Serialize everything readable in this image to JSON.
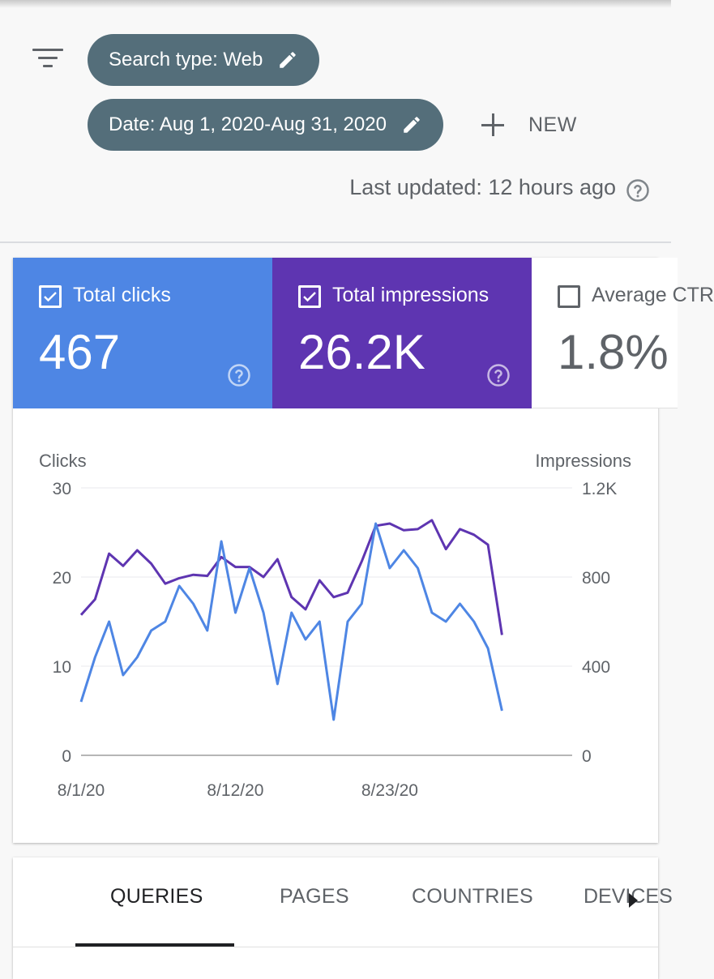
{
  "filters": {
    "search_type_label": "Search type: Web",
    "date_label": "Date: Aug 1, 2020-Aug 31, 2020",
    "new_label": "NEW",
    "last_updated": "Last updated: 12 hours ago"
  },
  "metrics": [
    {
      "label": "Total clicks",
      "value": "467",
      "checked": true,
      "color": "#4e86e4"
    },
    {
      "label": "Total impressions",
      "value": "26.2K",
      "checked": true,
      "color": "#5e35b1"
    },
    {
      "label": "Average CTR",
      "value": "1.8%",
      "checked": false
    }
  ],
  "chart_data": {
    "type": "line",
    "left_axis_label": "Clicks",
    "right_axis_label": "Impressions",
    "left_ticks": [
      "0",
      "10",
      "20",
      "30"
    ],
    "right_ticks": [
      "0",
      "400",
      "800",
      "1.2K"
    ],
    "ylim_left": [
      0,
      30
    ],
    "ylim_right": [
      0,
      1200
    ],
    "x_tick_labels": [
      "8/1/20",
      "8/12/20",
      "8/23/20"
    ],
    "x_tick_days": [
      1,
      12,
      23
    ],
    "x": [
      1,
      2,
      3,
      4,
      5,
      6,
      7,
      8,
      9,
      10,
      11,
      12,
      13,
      14,
      15,
      16,
      17,
      18,
      19,
      20,
      21,
      22,
      23,
      24,
      25,
      26,
      27,
      28,
      29,
      30,
      31
    ],
    "series": [
      {
        "name": "Clicks",
        "axis": "left",
        "color": "#4e86e4",
        "values": [
          6,
          11,
          15,
          9,
          11,
          14,
          15,
          19,
          17,
          14,
          24,
          16,
          21,
          16,
          8,
          16,
          13,
          15,
          4,
          15,
          17,
          26,
          21,
          23,
          21,
          16,
          15,
          17,
          15,
          12,
          5
        ]
      },
      {
        "name": "Impressions",
        "axis": "right",
        "color": "#5e35b1",
        "values": [
          630,
          700,
          905,
          850,
          920,
          860,
          770,
          795,
          810,
          805,
          890,
          845,
          845,
          800,
          880,
          710,
          655,
          785,
          710,
          730,
          870,
          1030,
          1040,
          1010,
          1015,
          1055,
          925,
          1015,
          990,
          945,
          540
        ]
      }
    ]
  },
  "tabs": [
    {
      "label": "QUERIES",
      "active": true
    },
    {
      "label": "PAGES",
      "active": false
    },
    {
      "label": "COUNTRIES",
      "active": false
    },
    {
      "label": "DEVICES",
      "active": false
    }
  ]
}
